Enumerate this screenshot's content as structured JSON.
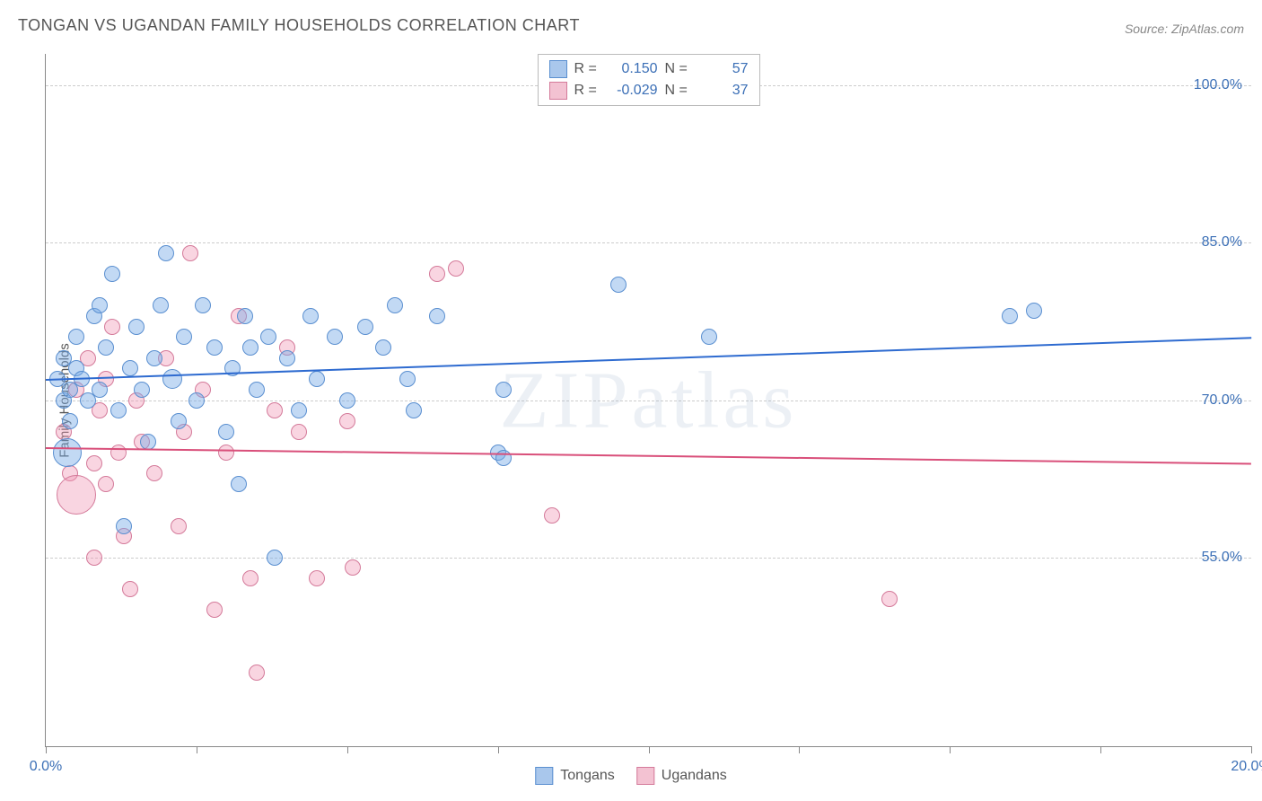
{
  "title": "TONGAN VS UGANDAN FAMILY HOUSEHOLDS CORRELATION CHART",
  "source": "Source: ZipAtlas.com",
  "watermark": "ZIPatlas",
  "ylabel": "Family Households",
  "chart": {
    "type": "scatter",
    "xlim": [
      0,
      20
    ],
    "ylim": [
      37,
      103
    ],
    "xticks": [
      0,
      2.5,
      5,
      7.5,
      10,
      12.5,
      15,
      17.5,
      20
    ],
    "xtick_labels": {
      "0": "0.0%",
      "20": "20.0%"
    },
    "yticks": [
      55,
      70,
      85,
      100
    ],
    "ytick_labels": [
      "55.0%",
      "70.0%",
      "85.0%",
      "100.0%"
    ],
    "grid_color": "#cccccc",
    "background_color": "#ffffff",
    "axis_color": "#888888",
    "tick_label_color": "#3b6fb6",
    "title_fontsize": 18,
    "label_fontsize": 15,
    "series": {
      "tongans": {
        "label": "Tongans",
        "fill": "rgba(120,170,230,0.45)",
        "stroke": "#5a8fd0",
        "swatch_fill": "#a9c7ec",
        "swatch_stroke": "#5a8fd0",
        "R": "0.150",
        "N": "57",
        "trendline": {
          "x1": 0,
          "y1": 72.0,
          "x2": 20,
          "y2": 76.0,
          "color": "#2e6bd0",
          "width": 2
        },
        "points": [
          {
            "x": 0.2,
            "y": 72,
            "r": 9
          },
          {
            "x": 0.3,
            "y": 70,
            "r": 9
          },
          {
            "x": 0.3,
            "y": 74,
            "r": 9
          },
          {
            "x": 0.4,
            "y": 68,
            "r": 9
          },
          {
            "x": 0.4,
            "y": 71,
            "r": 9
          },
          {
            "x": 0.5,
            "y": 73,
            "r": 9
          },
          {
            "x": 0.5,
            "y": 76,
            "r": 9
          },
          {
            "x": 0.35,
            "y": 65,
            "r": 16
          },
          {
            "x": 0.6,
            "y": 72,
            "r": 9
          },
          {
            "x": 0.7,
            "y": 70,
            "r": 9
          },
          {
            "x": 0.8,
            "y": 78,
            "r": 9
          },
          {
            "x": 0.9,
            "y": 71,
            "r": 9
          },
          {
            "x": 1.0,
            "y": 75,
            "r": 9
          },
          {
            "x": 1.1,
            "y": 82,
            "r": 9
          },
          {
            "x": 1.2,
            "y": 69,
            "r": 9
          },
          {
            "x": 1.3,
            "y": 58,
            "r": 9
          },
          {
            "x": 1.4,
            "y": 73,
            "r": 9
          },
          {
            "x": 1.5,
            "y": 77,
            "r": 9
          },
          {
            "x": 1.6,
            "y": 71,
            "r": 9
          },
          {
            "x": 1.8,
            "y": 74,
            "r": 9
          },
          {
            "x": 1.9,
            "y": 79,
            "r": 9
          },
          {
            "x": 2.0,
            "y": 84,
            "r": 9
          },
          {
            "x": 2.1,
            "y": 72,
            "r": 11
          },
          {
            "x": 2.2,
            "y": 68,
            "r": 9
          },
          {
            "x": 2.3,
            "y": 76,
            "r": 9
          },
          {
            "x": 2.5,
            "y": 70,
            "r": 9
          },
          {
            "x": 2.6,
            "y": 79,
            "r": 9
          },
          {
            "x": 2.8,
            "y": 75,
            "r": 9
          },
          {
            "x": 3.0,
            "y": 67,
            "r": 9
          },
          {
            "x": 3.1,
            "y": 73,
            "r": 9
          },
          {
            "x": 3.2,
            "y": 62,
            "r": 9
          },
          {
            "x": 3.3,
            "y": 78,
            "r": 9
          },
          {
            "x": 3.5,
            "y": 71,
            "r": 9
          },
          {
            "x": 3.7,
            "y": 76,
            "r": 9
          },
          {
            "x": 3.8,
            "y": 55,
            "r": 9
          },
          {
            "x": 4.0,
            "y": 74,
            "r": 9
          },
          {
            "x": 4.2,
            "y": 69,
            "r": 9
          },
          {
            "x": 4.4,
            "y": 78,
            "r": 9
          },
          {
            "x": 4.5,
            "y": 72,
            "r": 9
          },
          {
            "x": 4.8,
            "y": 76,
            "r": 9
          },
          {
            "x": 5.0,
            "y": 70,
            "r": 9
          },
          {
            "x": 5.3,
            "y": 77,
            "r": 9
          },
          {
            "x": 5.6,
            "y": 75,
            "r": 9
          },
          {
            "x": 5.8,
            "y": 79,
            "r": 9
          },
          {
            "x": 6.0,
            "y": 72,
            "r": 9
          },
          {
            "x": 6.1,
            "y": 69,
            "r": 9
          },
          {
            "x": 6.5,
            "y": 78,
            "r": 9
          },
          {
            "x": 7.5,
            "y": 65,
            "r": 9
          },
          {
            "x": 7.6,
            "y": 71,
            "r": 9
          },
          {
            "x": 7.6,
            "y": 64.5,
            "r": 9
          },
          {
            "x": 9.5,
            "y": 81,
            "r": 9
          },
          {
            "x": 11.0,
            "y": 76,
            "r": 9
          },
          {
            "x": 16.0,
            "y": 78,
            "r": 9
          },
          {
            "x": 16.4,
            "y": 78.5,
            "r": 9
          },
          {
            "x": 1.7,
            "y": 66,
            "r": 9
          },
          {
            "x": 0.9,
            "y": 79,
            "r": 9
          },
          {
            "x": 3.4,
            "y": 75,
            "r": 9
          }
        ]
      },
      "ugandans": {
        "label": "Ugandans",
        "fill": "rgba(240,150,180,0.40)",
        "stroke": "#d47a9a",
        "swatch_fill": "#f3c2d2",
        "swatch_stroke": "#d47a9a",
        "R": "-0.029",
        "N": "37",
        "trendline": {
          "x1": 0,
          "y1": 65.5,
          "x2": 20,
          "y2": 64.0,
          "color": "#d94f7a",
          "width": 2
        },
        "points": [
          {
            "x": 0.3,
            "y": 67,
            "r": 9
          },
          {
            "x": 0.4,
            "y": 63,
            "r": 9
          },
          {
            "x": 0.5,
            "y": 71,
            "r": 9
          },
          {
            "x": 0.5,
            "y": 61,
            "r": 22
          },
          {
            "x": 0.7,
            "y": 74,
            "r": 9
          },
          {
            "x": 0.8,
            "y": 64,
            "r": 9
          },
          {
            "x": 0.8,
            "y": 55,
            "r": 9
          },
          {
            "x": 0.9,
            "y": 69,
            "r": 9
          },
          {
            "x": 1.0,
            "y": 72,
            "r": 9
          },
          {
            "x": 1.0,
            "y": 62,
            "r": 9
          },
          {
            "x": 1.1,
            "y": 77,
            "r": 9
          },
          {
            "x": 1.2,
            "y": 65,
            "r": 9
          },
          {
            "x": 1.3,
            "y": 57,
            "r": 9
          },
          {
            "x": 1.4,
            "y": 52,
            "r": 9
          },
          {
            "x": 1.5,
            "y": 70,
            "r": 9
          },
          {
            "x": 1.6,
            "y": 66,
            "r": 9
          },
          {
            "x": 1.8,
            "y": 63,
            "r": 9
          },
          {
            "x": 2.0,
            "y": 74,
            "r": 9
          },
          {
            "x": 2.2,
            "y": 58,
            "r": 9
          },
          {
            "x": 2.3,
            "y": 67,
            "r": 9
          },
          {
            "x": 2.4,
            "y": 84,
            "r": 9
          },
          {
            "x": 2.6,
            "y": 71,
            "r": 9
          },
          {
            "x": 2.8,
            "y": 50,
            "r": 9
          },
          {
            "x": 3.0,
            "y": 65,
            "r": 9
          },
          {
            "x": 3.2,
            "y": 78,
            "r": 9
          },
          {
            "x": 3.4,
            "y": 53,
            "r": 9
          },
          {
            "x": 3.5,
            "y": 44,
            "r": 9
          },
          {
            "x": 3.8,
            "y": 69,
            "r": 9
          },
          {
            "x": 4.0,
            "y": 75,
            "r": 9
          },
          {
            "x": 4.2,
            "y": 67,
            "r": 9
          },
          {
            "x": 4.5,
            "y": 53,
            "r": 9
          },
          {
            "x": 5.0,
            "y": 68,
            "r": 9
          },
          {
            "x": 5.1,
            "y": 54,
            "r": 9
          },
          {
            "x": 6.5,
            "y": 82,
            "r": 9
          },
          {
            "x": 6.8,
            "y": 82.5,
            "r": 9
          },
          {
            "x": 8.4,
            "y": 59,
            "r": 9
          },
          {
            "x": 14.0,
            "y": 51,
            "r": 9
          }
        ]
      }
    }
  },
  "legend_top": {
    "r_label": "R =",
    "n_label": "N ="
  },
  "legend_bottom": [
    {
      "key": "tongans"
    },
    {
      "key": "ugandans"
    }
  ]
}
